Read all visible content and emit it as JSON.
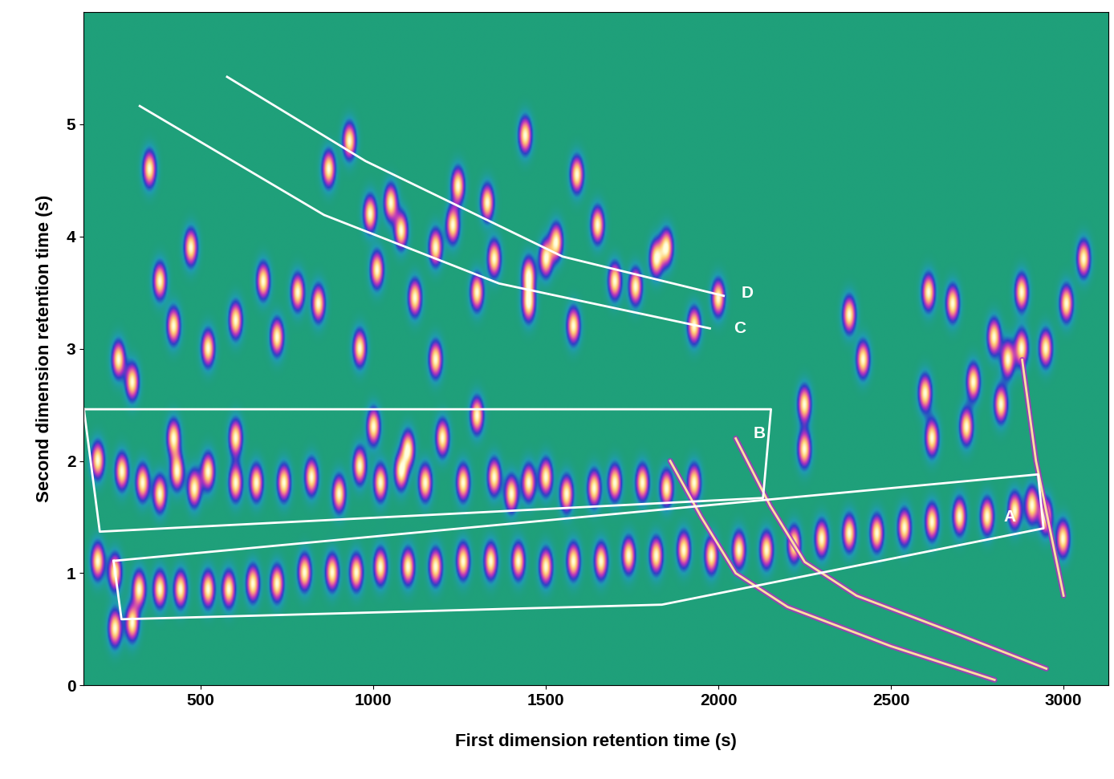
{
  "chart_data": {
    "type": "contour",
    "x_label": "First dimension retention time (s)",
    "y_label": "Second dimension retention time (s)",
    "xlim": [
      160,
      3130
    ],
    "ylim": [
      0,
      6
    ],
    "xticks": [
      500,
      1000,
      1500,
      2000,
      2500,
      3000
    ],
    "yticks": [
      0,
      1,
      2,
      3,
      4,
      5
    ],
    "peaks": {
      "x": [
        930,
        1245,
        1050,
        1440,
        1350,
        1450,
        1530,
        1590,
        1700,
        1760,
        1820,
        1180,
        1080,
        870,
        1010,
        780,
        840,
        600,
        420,
        470,
        350,
        1120,
        1230,
        1650,
        1500,
        1180,
        1300,
        1580,
        960,
        720,
        520,
        680,
        380,
        1850,
        1930,
        990,
        1330,
        1450,
        2000,
        2380,
        2420,
        2250,
        2610,
        2600,
        2680,
        2740,
        2800,
        2840,
        2880,
        2880,
        2950,
        3010,
        3060,
        2620,
        2250,
        2820,
        2720,
        200,
        270,
        330,
        380,
        430,
        480,
        520,
        600,
        660,
        740,
        820,
        900,
        960,
        1020,
        1080,
        1150,
        1200,
        1260,
        1300,
        1350,
        1400,
        1450,
        1500,
        1560,
        1640,
        1700,
        1780,
        1850,
        1930,
        300,
        260,
        420,
        600,
        1000,
        1100,
        200,
        250,
        320,
        380,
        440,
        520,
        580,
        650,
        720,
        800,
        880,
        950,
        1020,
        1100,
        1180,
        1260,
        1340,
        1420,
        1500,
        1580,
        1660,
        1740,
        1820,
        1900,
        1980,
        2060,
        2140,
        2220,
        2300,
        2380,
        2460,
        2540,
        2620,
        2700,
        2780,
        2860,
        2910,
        2950,
        3000,
        250,
        300
      ],
      "y": [
        4.85,
        4.45,
        4.3,
        4.9,
        3.8,
        3.65,
        3.95,
        4.55,
        3.6,
        3.55,
        3.8,
        3.9,
        4.05,
        4.6,
        3.7,
        3.5,
        3.4,
        3.25,
        3.2,
        3.9,
        4.6,
        3.45,
        4.1,
        4.1,
        3.8,
        2.9,
        3.5,
        3.2,
        3.0,
        3.1,
        3.0,
        3.6,
        3.6,
        3.9,
        3.2,
        4.2,
        4.3,
        3.4,
        3.45,
        3.3,
        2.9,
        2.5,
        3.5,
        2.6,
        3.4,
        2.7,
        3.1,
        2.9,
        3.5,
        3.0,
        3.0,
        3.4,
        3.8,
        2.2,
        2.1,
        2.5,
        2.3,
        2.0,
        1.9,
        1.8,
        1.7,
        1.9,
        1.75,
        1.9,
        1.8,
        1.8,
        1.8,
        1.85,
        1.7,
        1.95,
        1.8,
        1.9,
        1.8,
        2.2,
        1.8,
        2.4,
        1.85,
        1.7,
        1.8,
        1.85,
        1.7,
        1.75,
        1.8,
        1.8,
        1.75,
        1.8,
        2.7,
        2.9,
        2.2,
        2.2,
        2.3,
        2.1,
        1.1,
        1.0,
        0.85,
        0.85,
        0.85,
        0.85,
        0.85,
        0.9,
        0.9,
        1.0,
        1.0,
        1.0,
        1.05,
        1.05,
        1.05,
        1.1,
        1.1,
        1.1,
        1.05,
        1.1,
        1.1,
        1.15,
        1.15,
        1.2,
        1.15,
        1.2,
        1.2,
        1.25,
        1.3,
        1.35,
        1.35,
        1.4,
        1.45,
        1.5,
        1.5,
        1.55,
        1.6,
        1.5,
        1.3,
        0.5,
        0.55
      ]
    },
    "streaks": [
      {
        "x": [
          1860,
          1950,
          2050,
          2200,
          2500,
          2800
        ],
        "y": [
          2.0,
          1.5,
          1.0,
          0.7,
          0.35,
          0.05
        ]
      },
      {
        "x": [
          2050,
          2150,
          2250,
          2400,
          2700,
          2950
        ],
        "y": [
          2.2,
          1.6,
          1.1,
          0.8,
          0.45,
          0.15
        ]
      },
      {
        "x": [
          2880,
          2920,
          2960,
          3000
        ],
        "y": [
          2.9,
          2.0,
          1.4,
          0.8
        ]
      }
    ],
    "regions": [
      {
        "label": "A",
        "label_x": 2827,
        "label_y": 1.5,
        "x": [
          247,
          2926,
          2942,
          1836,
          270,
          247
        ],
        "y": [
          1.11,
          1.88,
          1.4,
          0.72,
          0.59,
          1.11
        ]
      },
      {
        "label": "B",
        "label_x": 2101,
        "label_y": 2.24,
        "x": [
          161,
          2152,
          2129,
          207,
          161
        ],
        "y": [
          2.46,
          2.46,
          1.67,
          1.37,
          2.46
        ]
      },
      {
        "label": "C",
        "label_x": 2044,
        "label_y": 3.18,
        "x": [
          323,
          857,
          1364,
          1975
        ],
        "y": [
          5.16,
          4.19,
          3.58,
          3.18
        ]
      },
      {
        "label": "D",
        "label_x": 2067,
        "label_y": 3.49,
        "x": [
          576,
          977,
          1548,
          2015
        ],
        "y": [
          5.42,
          4.67,
          3.82,
          3.47
        ]
      }
    ]
  }
}
